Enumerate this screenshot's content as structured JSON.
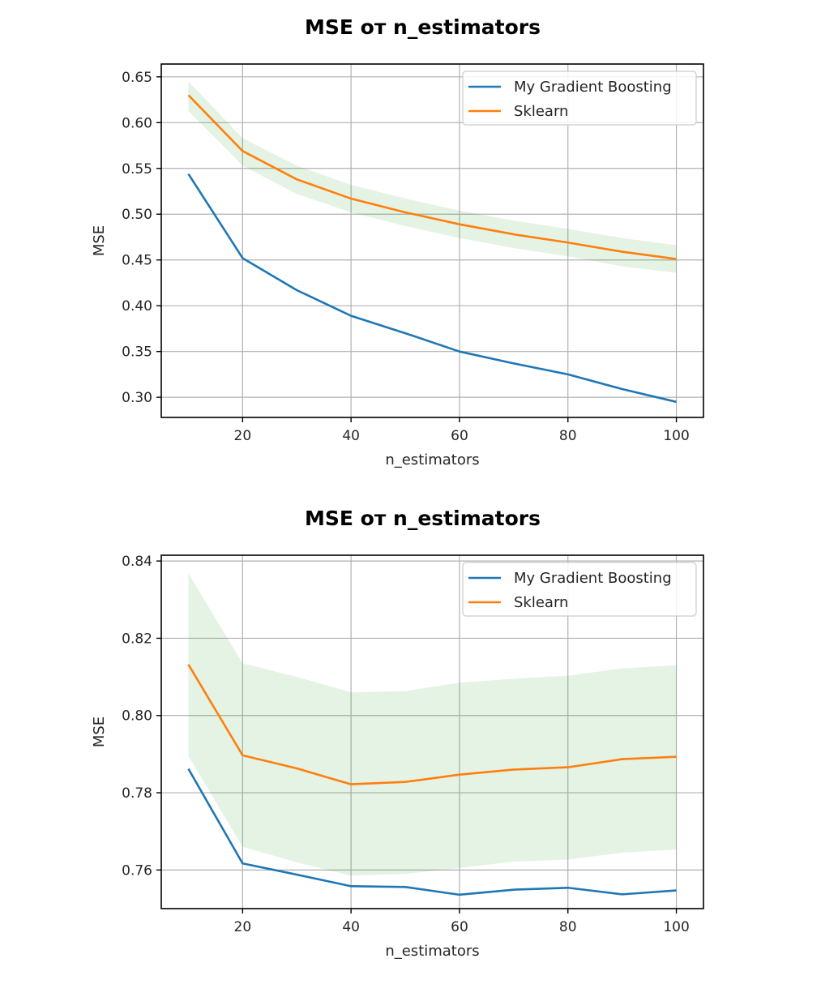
{
  "chart_data": [
    {
      "type": "line",
      "title": "MSE от n_estimators",
      "xlabel": "n_estimators",
      "ylabel": "MSE",
      "x": [
        10,
        20,
        30,
        40,
        50,
        60,
        70,
        80,
        90,
        100
      ],
      "xlim": [
        5,
        105
      ],
      "ylim": [
        0.278,
        0.664
      ],
      "xticks": [
        20,
        40,
        60,
        80,
        100
      ],
      "yticks": [
        0.3,
        0.35,
        0.4,
        0.45,
        0.5,
        0.55,
        0.6,
        0.65
      ],
      "ytick_labels": [
        "0.30",
        "0.35",
        "0.40",
        "0.45",
        "0.50",
        "0.55",
        "0.60",
        "0.65"
      ],
      "grid": true,
      "legend_position": "top-right",
      "series": [
        {
          "name": "My Gradient Boosting",
          "color": "#1f77b4",
          "values": [
            0.544,
            0.452,
            0.417,
            0.389,
            0.37,
            0.35,
            0.337,
            0.325,
            0.309,
            0.295
          ]
        },
        {
          "name": "Sklearn",
          "color": "#ff7f0e",
          "values": [
            0.63,
            0.569,
            0.538,
            0.517,
            0.502,
            0.489,
            0.478,
            0.469,
            0.459,
            0.451
          ]
        }
      ],
      "band": {
        "color": "#2ca02c",
        "lower": [
          0.613,
          0.553,
          0.522,
          0.502,
          0.487,
          0.474,
          0.463,
          0.454,
          0.443,
          0.436
        ],
        "upper": [
          0.645,
          0.583,
          0.553,
          0.532,
          0.517,
          0.504,
          0.493,
          0.484,
          0.474,
          0.466
        ]
      }
    },
    {
      "type": "line",
      "title": "MSE от n_estimators",
      "xlabel": "n_estimators",
      "ylabel": "MSE",
      "x": [
        10,
        20,
        30,
        40,
        50,
        60,
        70,
        80,
        90,
        100
      ],
      "xlim": [
        5,
        105
      ],
      "ylim": [
        0.75,
        0.8415
      ],
      "xticks": [
        20,
        40,
        60,
        80,
        100
      ],
      "yticks": [
        0.76,
        0.78,
        0.8,
        0.82,
        0.84
      ],
      "ytick_labels": [
        "0.76",
        "0.78",
        "0.80",
        "0.82",
        "0.84"
      ],
      "grid": true,
      "legend_position": "top-right",
      "series": [
        {
          "name": "My Gradient Boosting",
          "color": "#1f77b4",
          "values": [
            0.7862,
            0.7617,
            0.7588,
            0.7558,
            0.7556,
            0.7536,
            0.7549,
            0.7554,
            0.7537,
            0.7547
          ]
        },
        {
          "name": "Sklearn",
          "color": "#ff7f0e",
          "values": [
            0.8132,
            0.7897,
            0.7863,
            0.7822,
            0.7828,
            0.7847,
            0.786,
            0.7866,
            0.7887,
            0.7893
          ]
        }
      ],
      "band": {
        "color": "#2ca02c",
        "lower": [
          0.7895,
          0.766,
          0.762,
          0.7585,
          0.759,
          0.7605,
          0.7622,
          0.7627,
          0.7645,
          0.7653
        ],
        "upper": [
          0.8368,
          0.8135,
          0.81,
          0.806,
          0.8063,
          0.8085,
          0.8095,
          0.8103,
          0.8122,
          0.813
        ]
      }
    }
  ]
}
